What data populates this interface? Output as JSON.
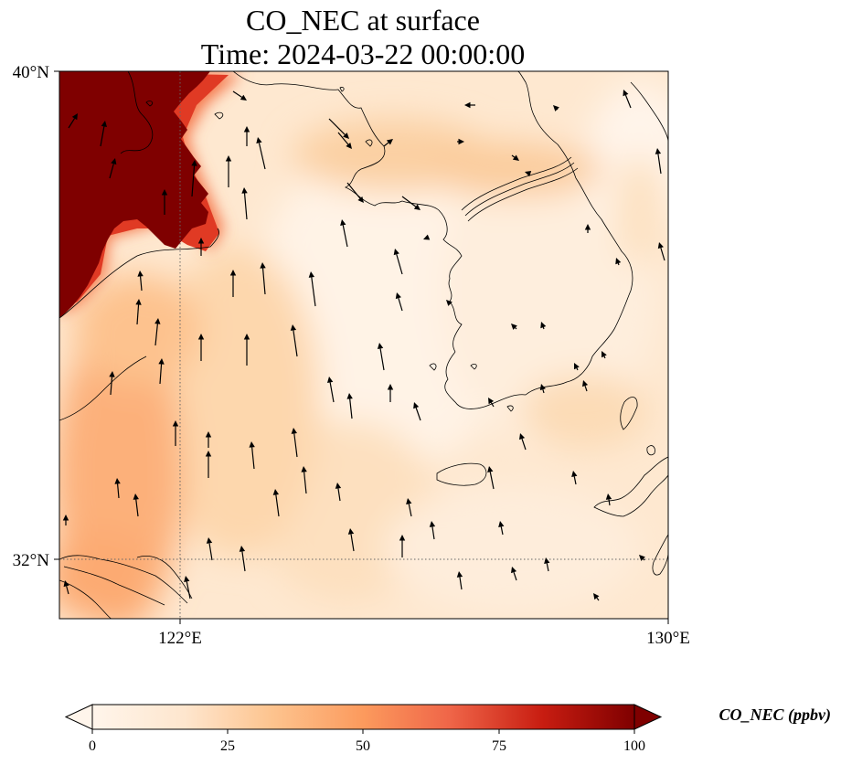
{
  "title_line1": "CO_NEC at surface",
  "title_line2": "Time: 2024-03-22 00:00:00",
  "map": {
    "lon_range": [
      119,
      130
    ],
    "lat_range": [
      31,
      40
    ],
    "lon_ticks": [
      {
        "value": 122,
        "label": "122°E"
      },
      {
        "value": 130,
        "label": "130°E"
      }
    ],
    "lat_ticks": [
      {
        "value": 40,
        "label": "40°N"
      },
      {
        "value": 32,
        "label": "32°N"
      }
    ],
    "gridlines": "dotted",
    "field": "CO_NEC",
    "wind_vectors": true
  },
  "colorbar": {
    "label": "CO_NEC (ppbv)",
    "min": 0,
    "max": 100,
    "ticks": [
      "0",
      "25",
      "50",
      "75",
      "100"
    ],
    "extend": "both",
    "colormap": [
      "#fff5eb",
      "#fdd9b2",
      "#fdae6b",
      "#f16913",
      "#d94801",
      "#a50f15",
      "#7f0000"
    ]
  }
}
